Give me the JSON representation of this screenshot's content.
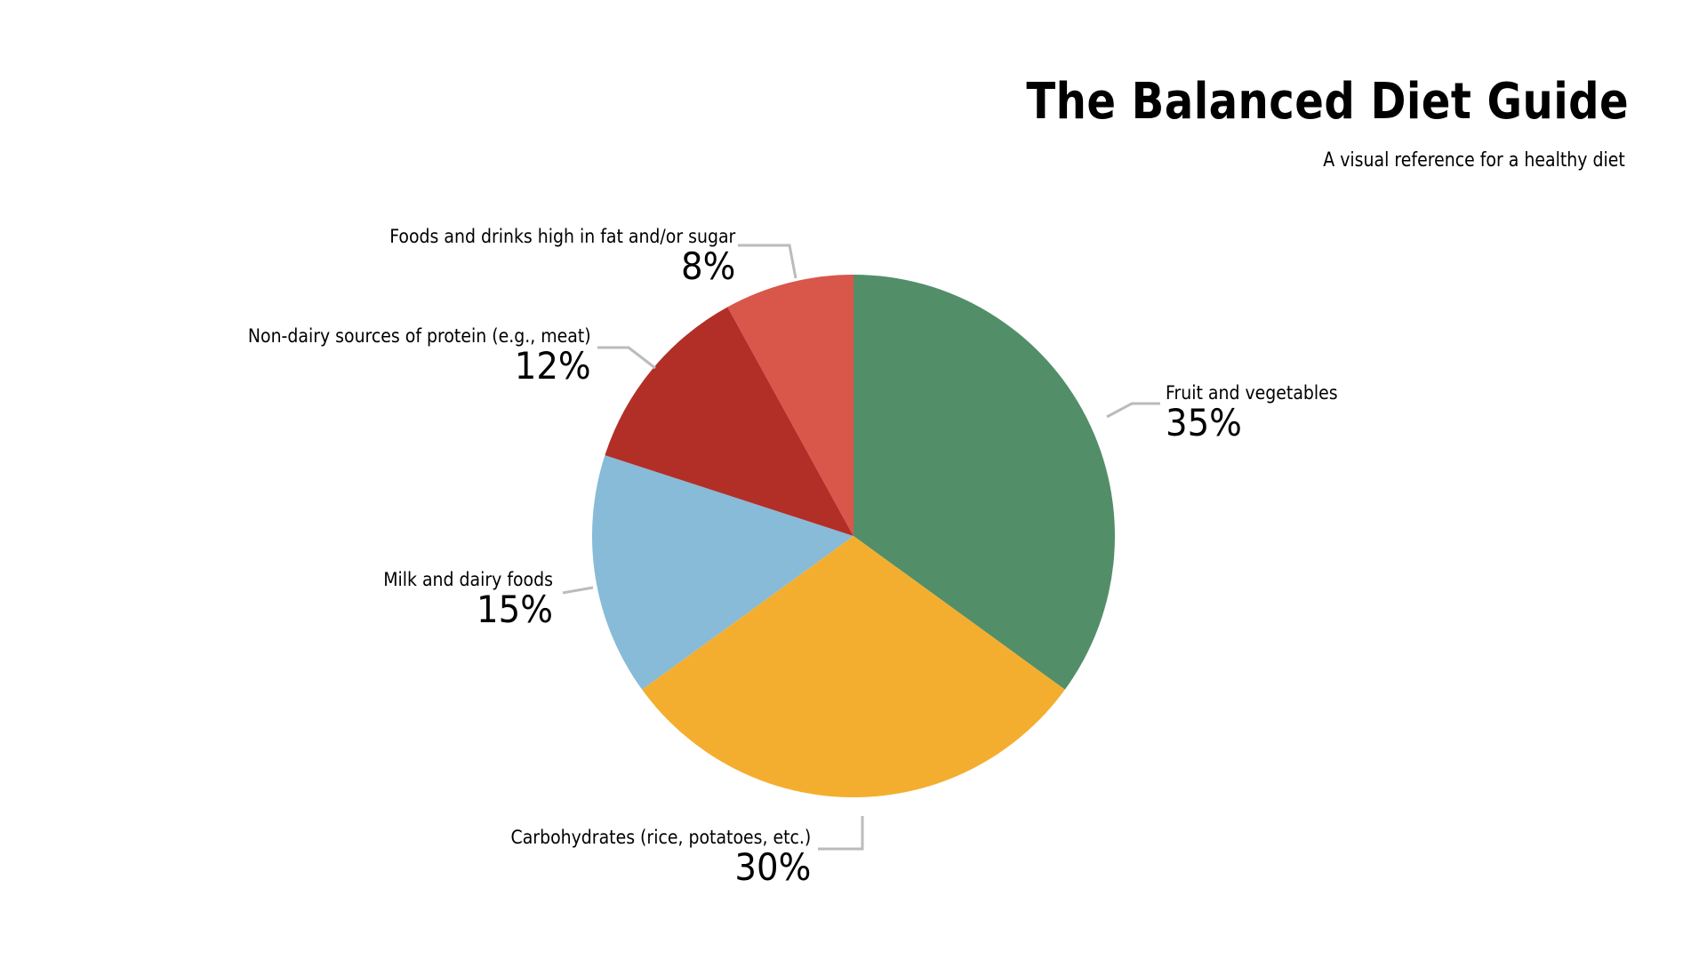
{
  "header": {
    "title": "The Balanced Diet Guide",
    "subtitle": "A visual reference for a healthy diet"
  },
  "chart_data": {
    "type": "pie",
    "title": "The Balanced Diet Guide",
    "subtitle": "A visual reference for a healthy diet",
    "start_angle_deg": 0,
    "direction": "clockwise",
    "slices": [
      {
        "label": "Fruit and vegetables",
        "value": 35,
        "display": "35%",
        "color": "#528f69"
      },
      {
        "label": "Carbohydrates (rice, potatoes, etc.)",
        "value": 30,
        "display": "30%",
        "color": "#f4ae2f"
      },
      {
        "label": "Milk and dairy foods",
        "value": 15,
        "display": "15%",
        "color": "#87bbd7"
      },
      {
        "label": "Non-dairy sources of protein (e.g., meat)",
        "value": 12,
        "display": "12%",
        "color": "#b22f28"
      },
      {
        "label": "Foods and drinks high in fat and/or sugar",
        "value": 8,
        "display": "8%",
        "color": "#d9564a"
      }
    ],
    "leader_line_color": "#bbbbbb",
    "legend": "none (direct labels)"
  }
}
